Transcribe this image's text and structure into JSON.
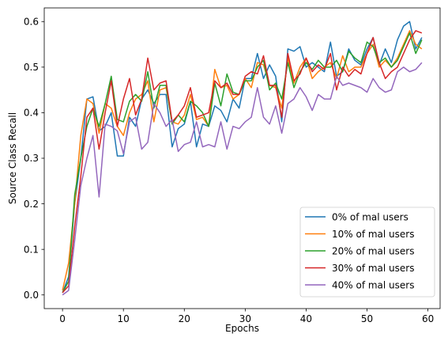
{
  "chart_data": {
    "type": "line",
    "title": "",
    "xlabel": "Epochs",
    "ylabel": "Source Class Recall",
    "xlim": [
      -3,
      62
    ],
    "ylim": [
      -0.03,
      0.63
    ],
    "xticks": [
      0,
      10,
      20,
      30,
      40,
      50,
      60
    ],
    "yticks": [
      0.0,
      0.1,
      0.2,
      0.3,
      0.4,
      0.5,
      0.6
    ],
    "xtick_labels": [
      "0",
      "10",
      "20",
      "30",
      "40",
      "50",
      "60"
    ],
    "ytick_labels": [
      "0.0",
      "0.1",
      "0.2",
      "0.3",
      "0.4",
      "0.5",
      "0.6"
    ],
    "grid": false,
    "legend_position": "lower-right",
    "x": [
      0,
      1,
      2,
      3,
      4,
      5,
      6,
      7,
      8,
      9,
      10,
      11,
      12,
      13,
      14,
      15,
      16,
      17,
      18,
      19,
      20,
      21,
      22,
      23,
      24,
      25,
      26,
      27,
      28,
      29,
      30,
      31,
      32,
      33,
      34,
      35,
      36,
      37,
      38,
      39,
      40,
      41,
      42,
      43,
      44,
      45,
      46,
      47,
      48,
      49,
      50,
      51,
      52,
      53,
      54,
      55,
      56,
      57,
      58,
      59
    ],
    "series": [
      {
        "name": "0% of mal users",
        "color": "#1f77b4",
        "values": [
          0.005,
          0.04,
          0.2,
          0.3,
          0.43,
          0.435,
          0.36,
          0.37,
          0.4,
          0.305,
          0.305,
          0.39,
          0.37,
          0.43,
          0.45,
          0.42,
          0.44,
          0.44,
          0.325,
          0.365,
          0.375,
          0.425,
          0.325,
          0.375,
          0.37,
          0.415,
          0.405,
          0.38,
          0.43,
          0.41,
          0.475,
          0.475,
          0.53,
          0.475,
          0.505,
          0.48,
          0.38,
          0.54,
          0.535,
          0.545,
          0.5,
          0.51,
          0.5,
          0.49,
          0.555,
          0.48,
          0.49,
          0.54,
          0.515,
          0.505,
          0.54,
          0.565,
          0.505,
          0.54,
          0.51,
          0.56,
          0.59,
          0.6,
          0.54,
          0.565
        ]
      },
      {
        "name": "10% of mal users",
        "color": "#ff7f0e",
        "values": [
          0.01,
          0.07,
          0.2,
          0.35,
          0.43,
          0.42,
          0.355,
          0.42,
          0.41,
          0.37,
          0.35,
          0.4,
          0.43,
          0.44,
          0.47,
          0.38,
          0.45,
          0.455,
          0.38,
          0.375,
          0.395,
          0.44,
          0.385,
          0.39,
          0.37,
          0.495,
          0.455,
          0.46,
          0.43,
          0.44,
          0.475,
          0.455,
          0.51,
          0.505,
          0.46,
          0.455,
          0.41,
          0.52,
          0.465,
          0.5,
          0.52,
          0.475,
          0.49,
          0.5,
          0.51,
          0.475,
          0.525,
          0.49,
          0.5,
          0.5,
          0.53,
          0.55,
          0.5,
          0.515,
          0.5,
          0.52,
          0.55,
          0.58,
          0.55,
          0.54
        ]
      },
      {
        "name": "20% of mal users",
        "color": "#2ca02c",
        "values": [
          0.005,
          0.03,
          0.22,
          0.3,
          0.37,
          0.41,
          0.37,
          0.42,
          0.48,
          0.385,
          0.38,
          0.425,
          0.44,
          0.425,
          0.49,
          0.41,
          0.46,
          0.46,
          0.375,
          0.395,
          0.38,
          0.425,
          0.415,
          0.4,
          0.37,
          0.465,
          0.415,
          0.485,
          0.445,
          0.44,
          0.47,
          0.47,
          0.5,
          0.515,
          0.45,
          0.465,
          0.43,
          0.51,
          0.455,
          0.49,
          0.51,
          0.495,
          0.515,
          0.5,
          0.5,
          0.515,
          0.49,
          0.535,
          0.52,
          0.51,
          0.555,
          0.545,
          0.51,
          0.52,
          0.5,
          0.515,
          0.545,
          0.575,
          0.53,
          0.56
        ]
      },
      {
        "name": "30% of mal users",
        "color": "#d62728",
        "values": [
          0.005,
          0.02,
          0.15,
          0.26,
          0.39,
          0.41,
          0.32,
          0.4,
          0.47,
          0.37,
          0.43,
          0.475,
          0.395,
          0.43,
          0.52,
          0.45,
          0.465,
          0.47,
          0.38,
          0.395,
          0.415,
          0.455,
          0.39,
          0.395,
          0.4,
          0.47,
          0.455,
          0.465,
          0.44,
          0.44,
          0.48,
          0.49,
          0.485,
          0.525,
          0.46,
          0.46,
          0.39,
          0.53,
          0.47,
          0.485,
          0.52,
          0.49,
          0.505,
          0.495,
          0.53,
          0.45,
          0.5,
          0.48,
          0.495,
          0.485,
          0.53,
          0.565,
          0.51,
          0.475,
          0.49,
          0.5,
          0.53,
          0.56,
          0.58,
          0.575
        ]
      },
      {
        "name": "40% of mal users",
        "color": "#9467bd",
        "values": [
          0.0,
          0.01,
          0.12,
          0.24,
          0.3,
          0.35,
          0.215,
          0.375,
          0.37,
          0.36,
          0.31,
          0.38,
          0.39,
          0.32,
          0.335,
          0.42,
          0.4,
          0.37,
          0.385,
          0.315,
          0.33,
          0.335,
          0.38,
          0.325,
          0.33,
          0.325,
          0.38,
          0.32,
          0.37,
          0.365,
          0.38,
          0.39,
          0.455,
          0.39,
          0.375,
          0.415,
          0.355,
          0.42,
          0.43,
          0.455,
          0.435,
          0.405,
          0.44,
          0.43,
          0.43,
          0.48,
          0.46,
          0.465,
          0.46,
          0.455,
          0.445,
          0.475,
          0.455,
          0.445,
          0.45,
          0.49,
          0.5,
          0.49,
          0.495,
          0.51
        ]
      }
    ]
  }
}
